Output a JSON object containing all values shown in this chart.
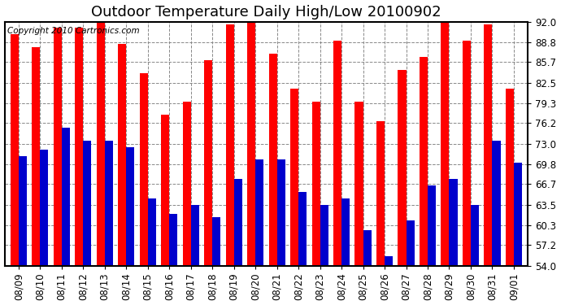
{
  "title": "Outdoor Temperature Daily High/Low 20100902",
  "copyright": "Copyright 2010 Cartronics.com",
  "dates": [
    "08/09",
    "08/10",
    "08/11",
    "08/12",
    "08/13",
    "08/14",
    "08/15",
    "08/16",
    "08/17",
    "08/18",
    "08/19",
    "08/20",
    "08/21",
    "08/22",
    "08/23",
    "08/24",
    "08/25",
    "08/26",
    "08/27",
    "08/28",
    "08/29",
    "08/30",
    "08/31",
    "09/01"
  ],
  "highs": [
    90.0,
    88.0,
    91.0,
    91.0,
    92.0,
    88.5,
    84.0,
    77.5,
    79.5,
    86.0,
    91.5,
    92.2,
    87.0,
    81.5,
    79.5,
    89.0,
    79.5,
    76.5,
    84.5,
    86.5,
    92.0,
    89.0,
    91.5,
    81.5
  ],
  "lows": [
    71.0,
    72.0,
    75.5,
    73.5,
    73.5,
    72.5,
    64.5,
    62.0,
    63.5,
    61.5,
    67.5,
    70.5,
    70.5,
    65.5,
    63.5,
    64.5,
    59.5,
    55.5,
    61.0,
    66.5,
    67.5,
    63.5,
    73.5,
    70.0
  ],
  "high_color": "#ff0000",
  "low_color": "#0000cc",
  "background_color": "#ffffff",
  "plot_bg_color": "#ffffff",
  "grid_color": "#888888",
  "ylim": [
    54.0,
    92.0
  ],
  "ybase": 54.0,
  "yticks": [
    54.0,
    57.2,
    60.3,
    63.5,
    66.7,
    69.8,
    73.0,
    76.2,
    79.3,
    82.5,
    85.7,
    88.8,
    92.0
  ],
  "title_fontsize": 13,
  "tick_fontsize": 8.5,
  "copyright_fontsize": 7.5,
  "bar_width": 0.38
}
